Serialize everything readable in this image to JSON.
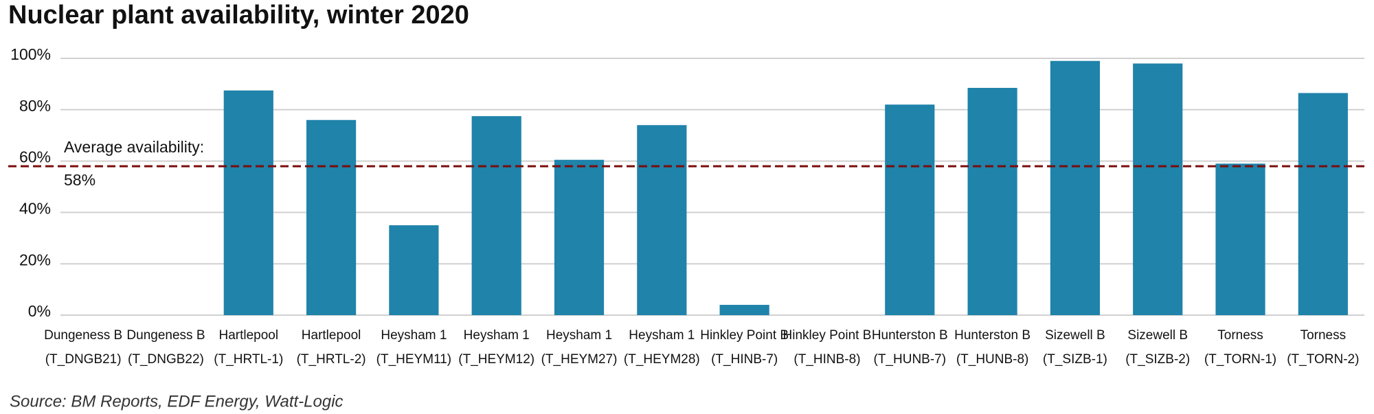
{
  "chart_data": {
    "type": "bar",
    "title": "Nuclear plant availability, winter 2020",
    "source": "Source: BM Reports, EDF Energy, Watt-Logic",
    "categories": [
      [
        "Dungeness B",
        "(T_DNGB21)"
      ],
      [
        "Dungeness B",
        "(T_DNGB22)"
      ],
      [
        "Hartlepool",
        "(T_HRTL-1)"
      ],
      [
        "Hartlepool",
        "(T_HRTL-2)"
      ],
      [
        "Heysham 1",
        "(T_HEYM11)"
      ],
      [
        "Heysham 1",
        "(T_HEYM12)"
      ],
      [
        "Heysham 1",
        "(T_HEYM27)"
      ],
      [
        "Heysham 1",
        "(T_HEYM28)"
      ],
      [
        "Hinkley Point B",
        "(T_HINB-7)"
      ],
      [
        "Hinkley Point B",
        "(T_HINB-8)"
      ],
      [
        "Hunterston B",
        "(T_HUNB-7)"
      ],
      [
        "Hunterston B",
        "(T_HUNB-8)"
      ],
      [
        "Sizewell B",
        "(T_SIZB-1)"
      ],
      [
        "Sizewell B",
        "(T_SIZB-2)"
      ],
      [
        "Torness",
        "(T_TORN-1)"
      ],
      [
        "Torness",
        "(T_TORN-2)"
      ]
    ],
    "values": [
      0,
      0,
      87.5,
      76,
      35,
      77.5,
      60.5,
      74,
      4,
      0,
      82,
      88.5,
      99,
      98,
      59,
      86.5
    ],
    "color": "#1f83aa",
    "ylim": [
      0,
      100
    ],
    "yticks": [
      {
        "value": 0,
        "label": "0%"
      },
      {
        "value": 20,
        "label": "20%"
      },
      {
        "value": 40,
        "label": "40%"
      },
      {
        "value": 60,
        "label": "60%"
      },
      {
        "value": 80,
        "label": "80%"
      },
      {
        "value": 100,
        "label": "100%"
      }
    ],
    "grid": true,
    "reference_line": {
      "value": 58,
      "label": "Average availability:",
      "value_label": "58%",
      "color": "#7a0c0c"
    }
  }
}
